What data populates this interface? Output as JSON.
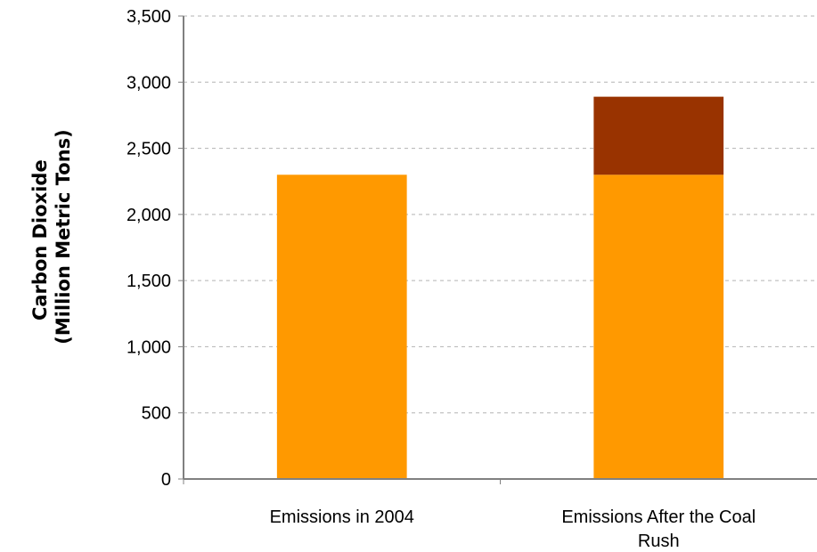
{
  "chart_data": {
    "type": "bar",
    "stacked": true,
    "title": "",
    "xlabel": "",
    "ylabel_lines": [
      "Carbon Dioxide",
      "(Million Metric Tons)"
    ],
    "ylim": [
      0,
      3500
    ],
    "yticks": [
      0,
      500,
      1000,
      1500,
      2000,
      2500,
      3000,
      3500
    ],
    "ytick_labels": [
      "0",
      "500",
      "1,000",
      "1,500",
      "2,000",
      "2,500",
      "3,000",
      "3,500"
    ],
    "grid": true,
    "legend": "none",
    "categories": [
      [
        "Emissions in 2004"
      ],
      [
        "Emissions After the Coal",
        "Rush"
      ]
    ],
    "series": [
      {
        "values": [
          2300,
          2300
        ],
        "color": "#ff9900"
      },
      {
        "values": [
          0,
          590
        ],
        "color": "#993300"
      }
    ]
  }
}
